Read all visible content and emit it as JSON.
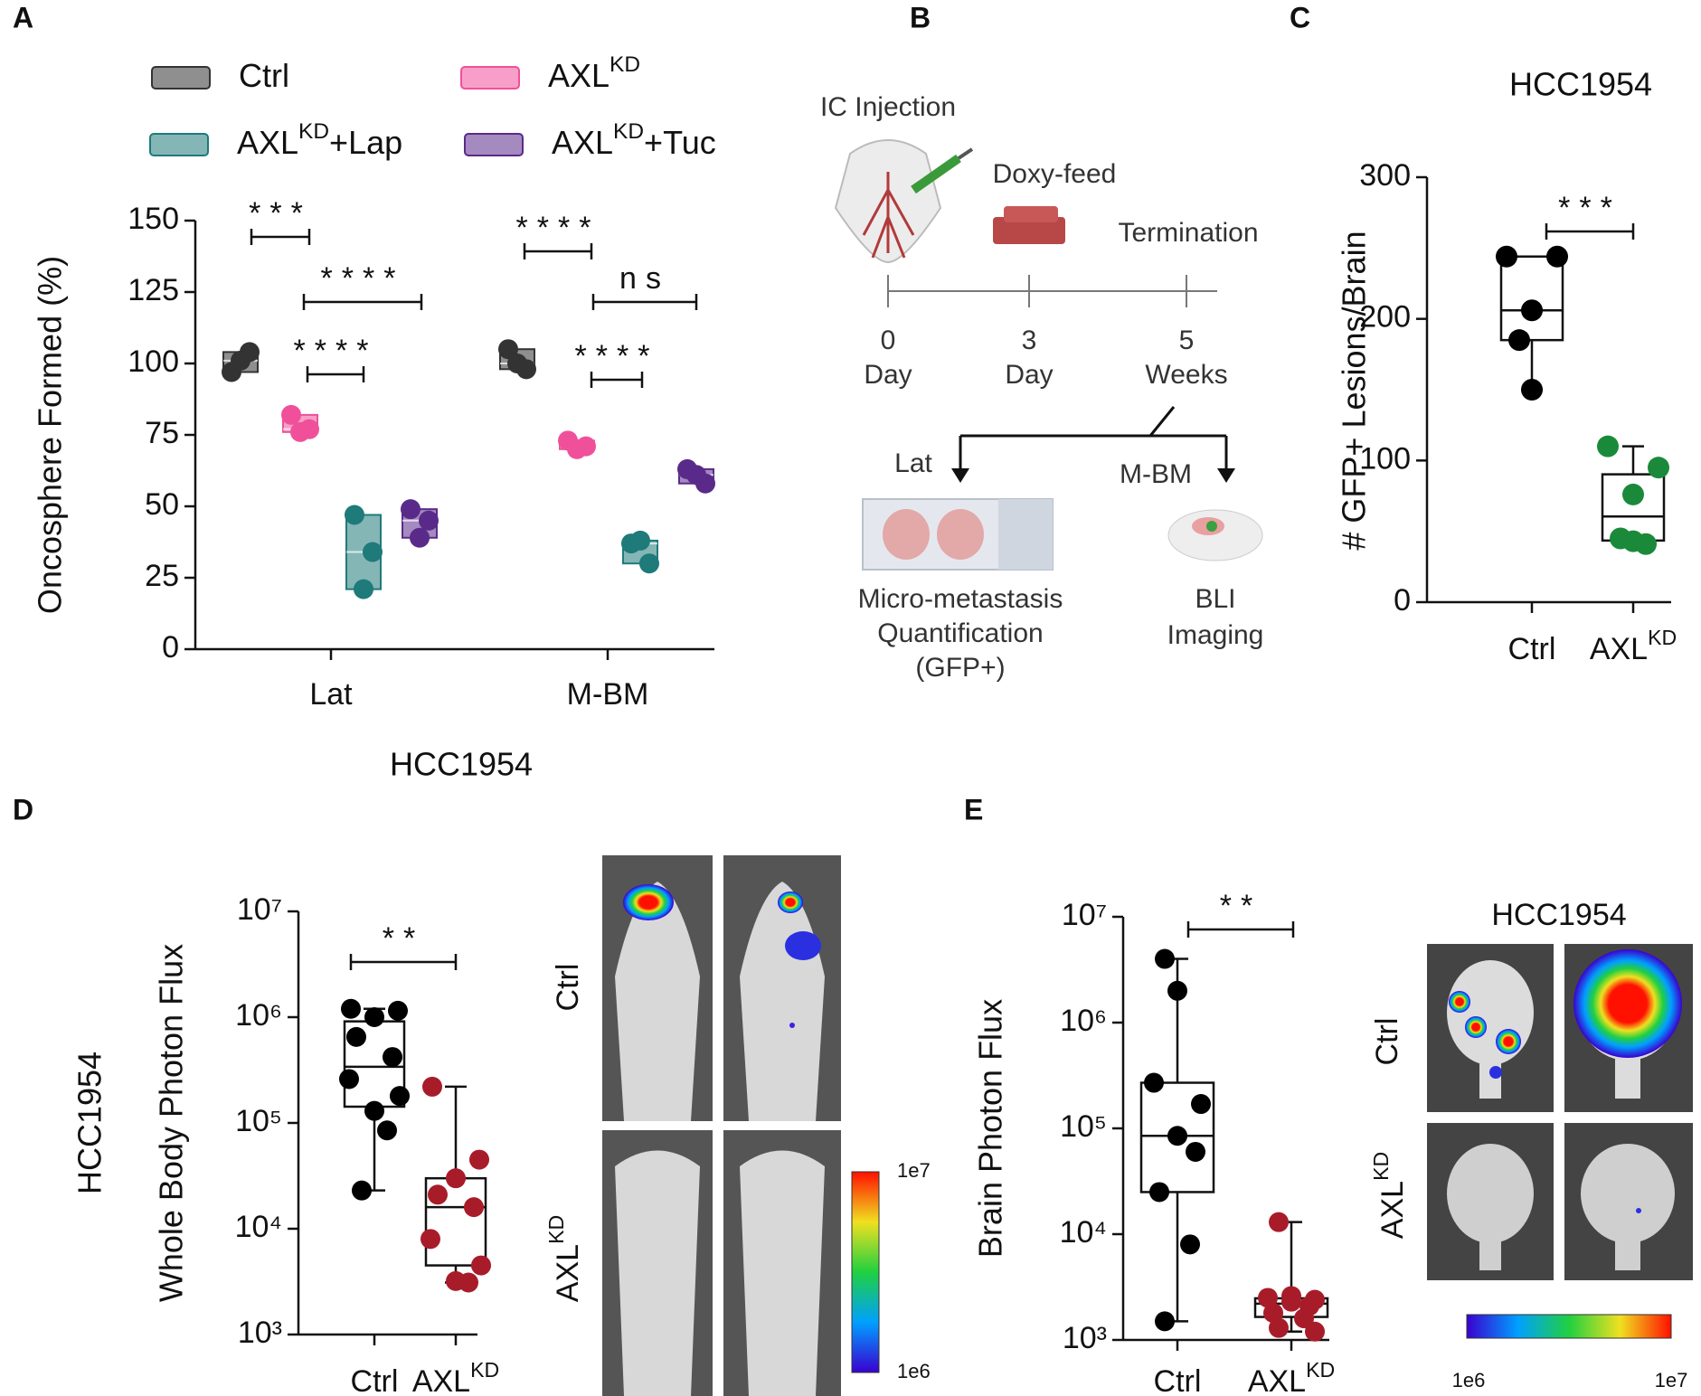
{
  "panels": [
    "A",
    "B",
    "C",
    "D",
    "E"
  ],
  "chart_data": [
    {
      "type": "box",
      "ylabel": "Oncosphere Formed (%)",
      "xlabel": "HCC1954",
      "categories": [
        "Lat",
        "M-BM"
      ],
      "ylim": [
        0,
        150
      ],
      "yticks": [
        0,
        25,
        50,
        75,
        100,
        125,
        150
      ],
      "series": [
        {
          "name": [
            "Ctrl"
          ],
          "color": "#333333",
          "values": [
            [
              97,
              104,
              101
            ],
            [
              105,
              98,
              100
            ]
          ]
        },
        {
          "name": [
            "AXL",
            "KD"
          ],
          "color": "#f0509a",
          "values": [
            [
              82,
              77,
              76
            ],
            [
              73,
              71,
              70
            ]
          ]
        },
        {
          "name": [
            "AXL",
            "KD",
            "+Lap"
          ],
          "color": "#1f7a7a",
          "values": [
            [
              47,
              34,
              21
            ],
            [
              37,
              30,
              38
            ]
          ]
        },
        {
          "name": [
            "AXL",
            "KD",
            "+Tuc"
          ],
          "color": "#5a2a8a",
          "values": [
            [
              49,
              45,
              39
            ],
            [
              63,
              58,
              61
            ]
          ]
        }
      ],
      "annotations": [
        "***",
        "****",
        "****",
        "****",
        "ns",
        "****"
      ]
    },
    {
      "type": "box",
      "title": "HCC1954",
      "ylabel": "# GFP+ Lesions/Brain",
      "categories": [
        [
          "Ctrl"
        ],
        [
          "AXL",
          "KD"
        ]
      ],
      "ylim": [
        0,
        300
      ],
      "yticks": [
        0,
        100,
        200,
        300
      ],
      "colors": [
        "#000000",
        "#1a8a3a"
      ],
      "values": [
        [
          244,
          244,
          206,
          185,
          150
        ],
        [
          110,
          95,
          76,
          45,
          43,
          41
        ]
      ],
      "annotations": [
        "***"
      ]
    },
    {
      "type": "box",
      "yscale": "log",
      "label": "HCC1954",
      "ylabel": "Whole Body Photon Flux",
      "categories": [
        [
          "Ctrl"
        ],
        [
          "AXL",
          "KD"
        ]
      ],
      "ylim": [
        1000,
        10000000
      ],
      "yticks": [
        {
          "value": 1000,
          "label": "10³"
        },
        {
          "value": 10000,
          "label": "10⁴"
        },
        {
          "value": 100000,
          "label": "10⁵"
        },
        {
          "value": 1000000,
          "label": "10⁶"
        },
        {
          "value": 10000000,
          "label": "10⁷"
        }
      ],
      "colors": [
        "#000000",
        "#a81c2a"
      ],
      "values": [
        [
          1200000,
          1150000,
          1000000,
          650000,
          420000,
          260000,
          180000,
          130000,
          85000,
          23000
        ],
        [
          220000,
          45000,
          30000,
          21000,
          16000,
          8000,
          4500,
          3200,
          3100
        ]
      ],
      "annotations": [
        "**"
      ]
    },
    {
      "type": "box",
      "yscale": "log",
      "ylabel": "Brain Photon Flux",
      "categories": [
        [
          "Ctrl"
        ],
        [
          "AXL",
          "KD"
        ]
      ],
      "ylim": [
        1000,
        10000000
      ],
      "yticks": [
        {
          "value": 1000,
          "label": "10³"
        },
        {
          "value": 10000,
          "label": "10⁴"
        },
        {
          "value": 100000,
          "label": "10⁵"
        },
        {
          "value": 1000000,
          "label": "10⁶"
        },
        {
          "value": 10000000,
          "label": "10⁷"
        }
      ],
      "colors": [
        "#000000",
        "#a81c2a"
      ],
      "values": [
        [
          4000000,
          2000000,
          270000,
          170000,
          85000,
          60000,
          25000,
          8000,
          1500
        ],
        [
          13000,
          2600,
          2500,
          2400,
          2300,
          2100,
          1800,
          1600,
          1300,
          1200
        ]
      ],
      "annotations": [
        "**"
      ]
    }
  ],
  "diagram": {
    "injection": "IC Injection",
    "feed": "Doxy-feed",
    "termination": "Termination",
    "timeline": [
      [
        "0",
        "Day"
      ],
      [
        "3",
        "Day"
      ],
      [
        "5",
        "Weeks"
      ]
    ],
    "left_branch": "Lat",
    "right_branch": "M-BM",
    "left_result": [
      "Micro-metastasis",
      "Quantification",
      "(GFP+)"
    ],
    "right_result": [
      "BLI",
      "Imaging"
    ]
  },
  "images": {
    "d": {
      "rows": [
        [
          "Ctrl"
        ],
        [
          "AXL",
          "KD"
        ]
      ],
      "colorbar": [
        "1e7",
        "1e6"
      ]
    },
    "e": {
      "title": "HCC1954",
      "rows": [
        [
          "Ctrl"
        ],
        [
          "AXL",
          "KD"
        ]
      ],
      "colorbar": [
        "1e6",
        "1e7"
      ]
    }
  }
}
